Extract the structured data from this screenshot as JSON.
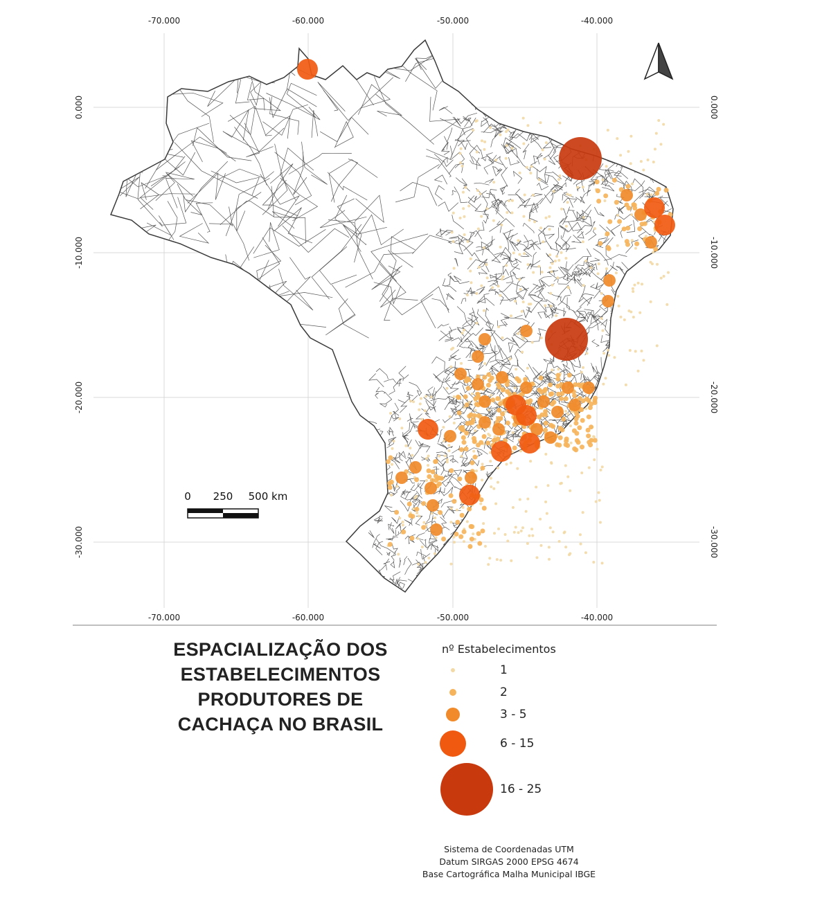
{
  "map": {
    "x_ticks": [
      "-70.000",
      "-60.000",
      "-50.000",
      "-40.000"
    ],
    "y_ticks": [
      "0.000",
      "-10.000",
      "-20.000",
      "-30.000"
    ],
    "scale_bar": {
      "labels": [
        "0",
        "250",
        "500 km"
      ]
    },
    "north_arrow": "north-arrow-icon",
    "base_fill": "#ffffff",
    "outline_color": "#3a3a3a",
    "symbol_colors": {
      "1": "#f2d9a6",
      "2": "#f5b45c",
      "3-5": "#f08a2a",
      "6-15": "#f05a10",
      "16-25": "#c83a0e"
    }
  },
  "title": {
    "lines": [
      "ESPACIALIZAÇÃO DOS",
      "ESTABELECIMENTOS",
      "PRODUTORES DE",
      "CACHAÇA NO BRASIL"
    ]
  },
  "legend": {
    "title": "nº Estabelecimentos",
    "items": [
      {
        "label": "1",
        "color": "#f2d9a6"
      },
      {
        "label": "2",
        "color": "#f5b45c"
      },
      {
        "label": "3 - 5",
        "color": "#f08a2a"
      },
      {
        "label": "6 - 15",
        "color": "#f05a10"
      },
      {
        "label": "16 - 25",
        "color": "#c83a0e"
      }
    ]
  },
  "credits": {
    "lines": [
      "Sistema de Coordenadas UTM",
      "Datum SIRGAS 2000 EPSG 4674",
      "Base Cartográfica Malha Municipal IBGE"
    ]
  }
}
